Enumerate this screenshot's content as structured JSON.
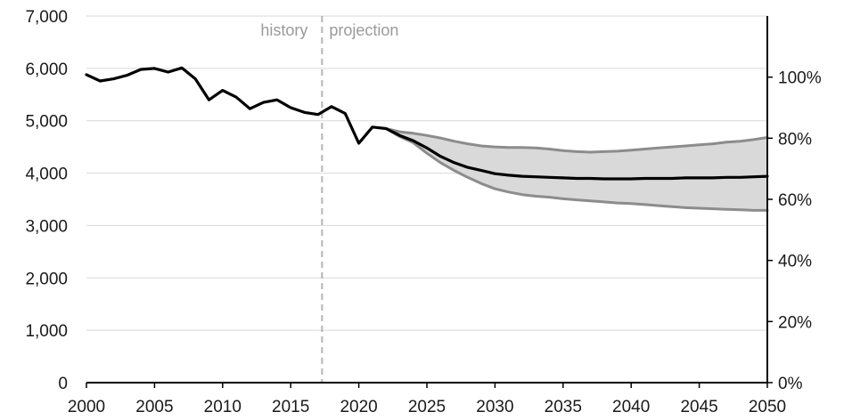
{
  "chart_data": {
    "type": "line",
    "title": "",
    "xlabel": "",
    "ylabel": "",
    "xlim": [
      2000,
      2050
    ],
    "ylim": [
      0,
      7000
    ],
    "y2lim": [
      0,
      1.2
    ],
    "x_ticks": [
      2000,
      2005,
      2010,
      2015,
      2020,
      2025,
      2030,
      2035,
      2040,
      2045,
      2050
    ],
    "y_ticks": [
      0,
      1000,
      2000,
      3000,
      4000,
      5000,
      6000,
      7000
    ],
    "y_tick_labels": [
      "0",
      "1,000",
      "2,000",
      "3,000",
      "4,000",
      "5,000",
      "6,000",
      "7,000"
    ],
    "y2_ticks": [
      0,
      0.2,
      0.4,
      0.6,
      0.8,
      1.0
    ],
    "y2_tick_labels": [
      "0%",
      "20%",
      "40%",
      "60%",
      "80%",
      "100%"
    ],
    "divider_x": 2017.3,
    "annotations": {
      "history": "history",
      "projection": "projection"
    },
    "colors": {
      "main": "#000000",
      "band_line": "#8c8c8c",
      "band_fill": "#d9d9d9",
      "divider": "#b4b4b4",
      "grid": "#d9d9d9"
    },
    "series": [
      {
        "x": [
          2000,
          2001,
          2002,
          2003,
          2004,
          2005,
          2006,
          2007,
          2008,
          2009,
          2010,
          2011,
          2012,
          2013,
          2014,
          2015,
          2016,
          2017,
          2018,
          2019,
          2020,
          2021,
          2022,
          2023,
          2024,
          2025,
          2026,
          2027,
          2028,
          2029,
          2030,
          2031,
          2032,
          2033,
          2034,
          2035,
          2036,
          2037,
          2038,
          2039,
          2040,
          2041,
          2042,
          2043,
          2044,
          2045,
          2046,
          2047,
          2048,
          2049,
          2050
        ],
        "values": [
          5880,
          5760,
          5800,
          5870,
          5980,
          6000,
          5930,
          6010,
          5800,
          5400,
          5580,
          5450,
          5230,
          5350,
          5400,
          5250,
          5160,
          5120,
          5270,
          5140,
          4570,
          4880,
          4850,
          4720,
          4620,
          4480,
          4320,
          4200,
          4110,
          4050,
          3990,
          3960,
          3940,
          3930,
          3920,
          3910,
          3900,
          3900,
          3890,
          3890,
          3890,
          3900,
          3900,
          3900,
          3910,
          3910,
          3910,
          3920,
          3920,
          3930,
          3940
        ]
      },
      {
        "x": [
          2022,
          2023,
          2024,
          2025,
          2026,
          2027,
          2028,
          2029,
          2030,
          2031,
          2032,
          2033,
          2034,
          2035,
          2036,
          2037,
          2038,
          2039,
          2040,
          2041,
          2042,
          2043,
          2044,
          2045,
          2046,
          2047,
          2048,
          2049,
          2050
        ],
        "values": [
          4850,
          4790,
          4760,
          4720,
          4670,
          4610,
          4560,
          4520,
          4500,
          4490,
          4490,
          4480,
          4460,
          4430,
          4410,
          4400,
          4410,
          4420,
          4440,
          4460,
          4480,
          4500,
          4520,
          4540,
          4560,
          4590,
          4610,
          4640,
          4680
        ]
      },
      {
        "x": [
          2022,
          2023,
          2024,
          2025,
          2026,
          2027,
          2028,
          2029,
          2030,
          2031,
          2032,
          2033,
          2034,
          2035,
          2036,
          2037,
          2038,
          2039,
          2040,
          2041,
          2042,
          2043,
          2044,
          2045,
          2046,
          2047,
          2048,
          2049,
          2050
        ],
        "values": [
          4850,
          4700,
          4580,
          4380,
          4200,
          4050,
          3920,
          3800,
          3700,
          3640,
          3590,
          3560,
          3540,
          3510,
          3490,
          3470,
          3450,
          3430,
          3420,
          3400,
          3380,
          3360,
          3340,
          3330,
          3320,
          3310,
          3300,
          3290,
          3290
        ]
      }
    ]
  }
}
